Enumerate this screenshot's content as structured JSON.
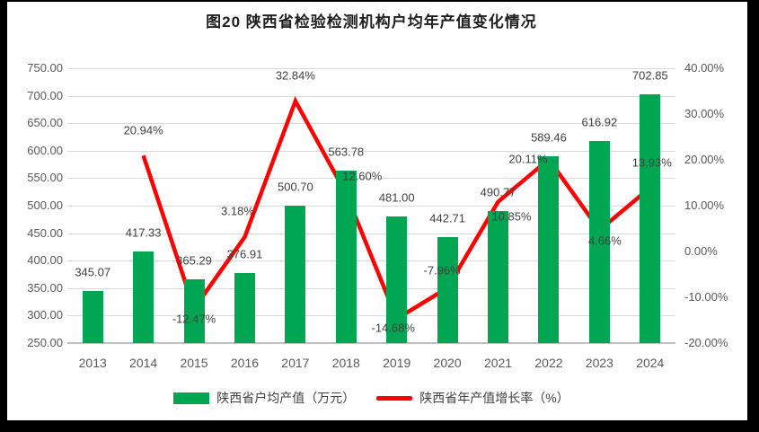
{
  "title": "图20  陕西省检验检测机构户均年产值变化情况",
  "chart_data": {
    "type": "bar",
    "subtype": "bar-line-combo",
    "categories": [
      "2013",
      "2014",
      "2015",
      "2016",
      "2017",
      "2018",
      "2019",
      "2020",
      "2021",
      "2022",
      "2023",
      "2024"
    ],
    "series": [
      {
        "name": "陕西省户均产值（万元）",
        "type": "bar",
        "axis": "left",
        "color": "#00A651",
        "values": [
          345.07,
          417.33,
          365.29,
          376.91,
          500.7,
          563.78,
          481.0,
          442.71,
          490.77,
          589.46,
          616.92,
          702.85
        ],
        "labels": [
          "345.07",
          "417.33",
          "365.29",
          "376.91",
          "500.70",
          "563.78",
          "481.00",
          "442.71",
          "490.77",
          "589.46",
          "616.92",
          "702.85"
        ]
      },
      {
        "name": "陕西省年产值增长率（%）",
        "type": "line",
        "axis": "right",
        "color": "#FE0000",
        "values": [
          null,
          20.94,
          -12.47,
          3.18,
          32.84,
          12.6,
          -14.68,
          -7.96,
          10.85,
          20.11,
          4.66,
          13.93
        ],
        "labels": [
          "",
          "20.94%",
          "-12.47%",
          "3.18%",
          "32.84%",
          "12.60%",
          "-14.68%",
          "-7.96%",
          "10.85%",
          "20.11%",
          "4.66%",
          "13.93%"
        ]
      }
    ],
    "left_axis": {
      "min": 250,
      "max": 750,
      "step": 50,
      "ticks": [
        "750.00",
        "700.00",
        "650.00",
        "600.00",
        "550.00",
        "500.00",
        "450.00",
        "400.00",
        "350.00",
        "300.00",
        "250.00"
      ]
    },
    "right_axis": {
      "min": -20,
      "max": 40,
      "step": 10,
      "ticks": [
        "40.00%",
        "30.00%",
        "20.00%",
        "10.00%",
        "0.00%",
        "-10.00%",
        "-20.00%"
      ]
    },
    "grid": true,
    "legend_position": "bottom",
    "colors": {
      "grid": "#D9D9D9",
      "axis_line": "#BFBFBF",
      "tick_text": "#595959",
      "data_label_text": "#404040",
      "title_text": "#1F1F1F"
    }
  }
}
